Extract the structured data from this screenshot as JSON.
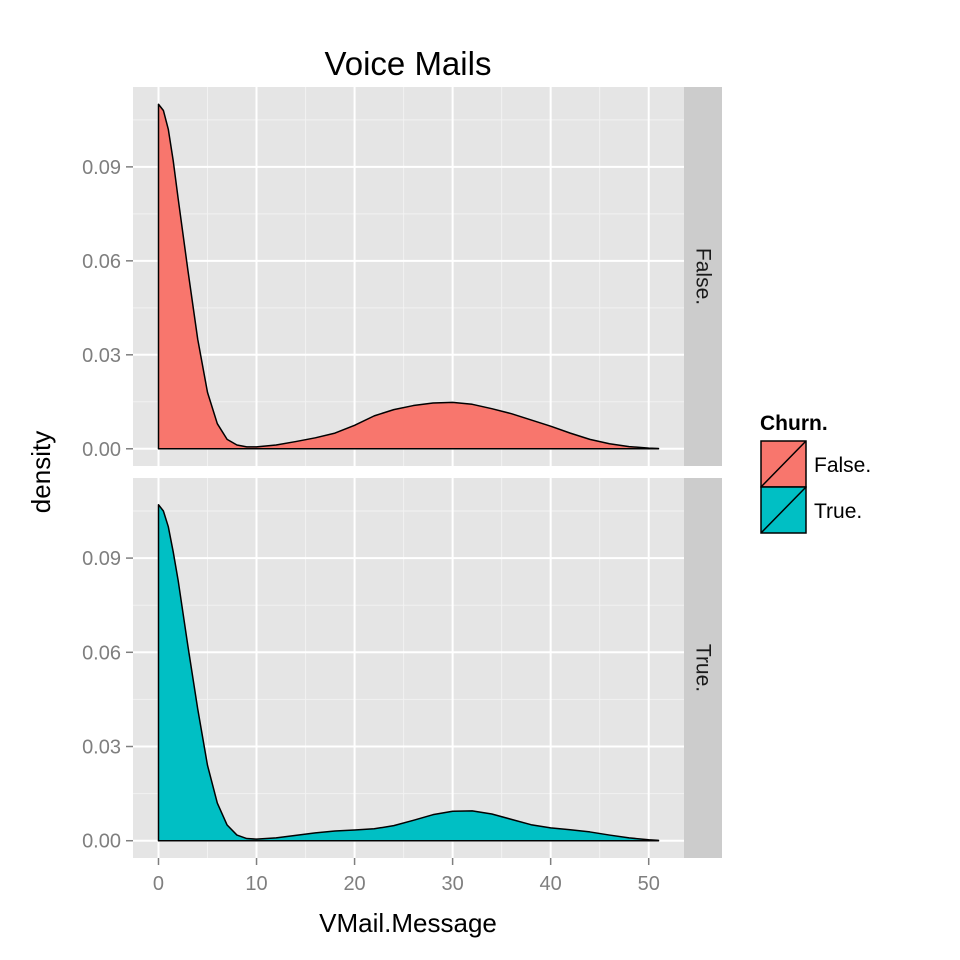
{
  "chart_data": {
    "type": "area",
    "title": "Voice Mails",
    "xlabel": "VMail.Message",
    "ylabel": "density",
    "xlim": [
      -2.6,
      53.6
    ],
    "ylim": [
      -0.0055,
      0.1155
    ],
    "x_ticks": [
      0,
      10,
      20,
      30,
      40,
      50
    ],
    "y_ticks": [
      0.0,
      0.03,
      0.06,
      0.09
    ],
    "x_tick_labels": [
      "0",
      "10",
      "20",
      "30",
      "40",
      "50"
    ],
    "y_tick_labels": [
      "0.00",
      "0.03",
      "0.06",
      "0.09"
    ],
    "grid": true,
    "facet_by": "Churn.",
    "legend": {
      "title": "Churn.",
      "position": "right",
      "items": [
        {
          "label": "False.",
          "color": "#F8766D"
        },
        {
          "label": "True.",
          "color": "#00BFC4"
        }
      ]
    },
    "panels": [
      {
        "strip_label": "False.",
        "fill": "#F8766D",
        "x": [
          0,
          0.5,
          1,
          1.5,
          2,
          3,
          4,
          5,
          6,
          7,
          8,
          9,
          10,
          12,
          14,
          16,
          18,
          20,
          22,
          24,
          26,
          28,
          30,
          32,
          34,
          36,
          38,
          40,
          42,
          44,
          46,
          48,
          50,
          51
        ],
        "y": [
          0.11,
          0.108,
          0.102,
          0.092,
          0.08,
          0.057,
          0.035,
          0.018,
          0.008,
          0.003,
          0.0012,
          0.0006,
          0.0006,
          0.0012,
          0.0023,
          0.0035,
          0.005,
          0.0075,
          0.0105,
          0.0125,
          0.0138,
          0.0146,
          0.0148,
          0.0142,
          0.0128,
          0.0112,
          0.0092,
          0.0072,
          0.005,
          0.003,
          0.0016,
          0.0007,
          0.0002,
          0.0001
        ]
      },
      {
        "strip_label": "True.",
        "fill": "#00BFC4",
        "x": [
          0,
          0.5,
          1,
          1.5,
          2,
          3,
          4,
          5,
          6,
          7,
          8,
          9,
          10,
          12,
          14,
          16,
          18,
          20,
          22,
          24,
          26,
          28,
          30,
          32,
          34,
          36,
          38,
          40,
          42,
          44,
          46,
          48,
          50,
          51
        ],
        "y": [
          0.107,
          0.105,
          0.1,
          0.092,
          0.083,
          0.062,
          0.042,
          0.024,
          0.012,
          0.005,
          0.0018,
          0.0007,
          0.0005,
          0.0009,
          0.0017,
          0.0025,
          0.0031,
          0.0034,
          0.0038,
          0.0048,
          0.0065,
          0.0083,
          0.0094,
          0.0095,
          0.0085,
          0.0068,
          0.0051,
          0.0041,
          0.0035,
          0.0028,
          0.0018,
          0.0009,
          0.0003,
          0.0001
        ]
      }
    ]
  }
}
